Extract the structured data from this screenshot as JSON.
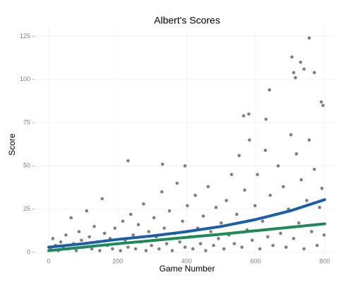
{
  "chart_data": {
    "type": "scatter",
    "title": "Albert's Scores",
    "x_label": "Game Number",
    "y_label": "Score",
    "xlim": [
      -40,
      830
    ],
    "ylim": [
      -3,
      130
    ],
    "xticks": [
      0,
      200,
      400,
      600,
      800
    ],
    "yticks": [
      0,
      25,
      50,
      75,
      100,
      125
    ],
    "grid": true,
    "color": "#7f7f7f",
    "x": [
      5,
      12,
      20,
      28,
      35,
      42,
      50,
      58,
      65,
      72,
      80,
      88,
      95,
      103,
      110,
      118,
      125,
      132,
      140,
      148,
      155,
      162,
      170,
      178,
      185,
      192,
      200,
      208,
      215,
      222,
      230,
      238,
      245,
      252,
      260,
      268,
      275,
      282,
      290,
      298,
      305,
      312,
      320,
      328,
      335,
      342,
      350,
      358,
      365,
      372,
      380,
      388,
      395,
      402,
      410,
      418,
      425,
      432,
      440,
      448,
      455,
      462,
      470,
      478,
      485,
      492,
      500,
      508,
      515,
      522,
      530,
      538,
      545,
      552,
      560,
      568,
      575,
      582,
      590,
      598,
      605,
      612,
      620,
      628,
      635,
      642,
      650,
      658,
      665,
      672,
      680,
      688,
      695,
      702,
      710,
      718,
      725,
      732,
      740,
      748,
      755,
      762,
      770,
      778,
      785,
      792,
      798,
      230,
      330,
      395,
      565,
      580,
      630,
      640,
      705,
      710,
      715,
      730,
      740,
      755,
      770,
      790,
      795
    ],
    "values": [
      2,
      8,
      4,
      1,
      6,
      3,
      10,
      2,
      20,
      5,
      1,
      12,
      7,
      3,
      24,
      9,
      2,
      15,
      6,
      1,
      31,
      11,
      4,
      8,
      2,
      14,
      5,
      1,
      18,
      7,
      3,
      22,
      10,
      2,
      16,
      6,
      28,
      1,
      12,
      4,
      20,
      9,
      2,
      35,
      14,
      5,
      24,
      1,
      11,
      40,
      6,
      18,
      3,
      27,
      9,
      2,
      33,
      14,
      5,
      21,
      1,
      38,
      12,
      4,
      26,
      8,
      17,
      2,
      30,
      10,
      45,
      5,
      22,
      56,
      3,
      36,
      13,
      65,
      7,
      27,
      45,
      2,
      18,
      59,
      9,
      33,
      4,
      22,
      50,
      11,
      38,
      3,
      25,
      68,
      8,
      57,
      17,
      42,
      2,
      30,
      65,
      12,
      48,
      4,
      26,
      37,
      10,
      53,
      51,
      50,
      79,
      80,
      77,
      94,
      113,
      104,
      101,
      110,
      106,
      124,
      104,
      87,
      85
    ],
    "trend_lines": [
      {
        "color": "#1a5ea8",
        "x": [
          0,
          100,
          200,
          300,
          400,
          500,
          600,
          700,
          800
        ],
        "values": [
          3,
          5,
          7.5,
          9.5,
          12,
          15,
          19,
          24,
          30.5
        ]
      },
      {
        "color": "#1e8a5a",
        "x": [
          0,
          100,
          200,
          300,
          400,
          500,
          600,
          700,
          800
        ],
        "values": [
          1,
          3,
          5,
          6.8,
          8.7,
          10.5,
          12.5,
          14.5,
          16.5
        ]
      }
    ]
  }
}
